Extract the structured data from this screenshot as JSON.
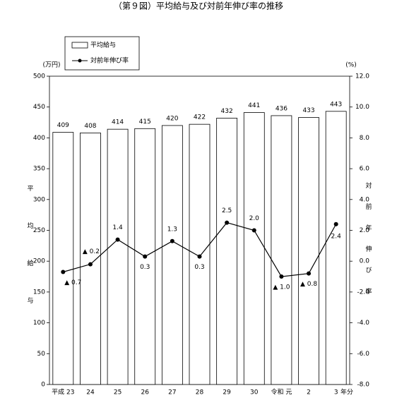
{
  "chart_data": {
    "type": "bar",
    "title": "（第９図）平均給与及び対前年伸び率の推移",
    "categories": [
      "平成 23",
      "24",
      "25",
      "26",
      "27",
      "28",
      "29",
      "30",
      "令和 元",
      "2",
      "3"
    ],
    "xlabel": "年分",
    "ylabel": "平均給与",
    "y_unit_label": "(万円)",
    "y2label": "対前年伸び率",
    "y2_unit_label": "(%)",
    "series": [
      {
        "name": "平均給与",
        "type": "bar",
        "color": "#ffffff",
        "values": [
          409,
          408,
          414,
          415,
          420,
          422,
          432,
          441,
          436,
          433,
          443
        ]
      },
      {
        "name": "対前年伸び率",
        "type": "line",
        "axis": "y2",
        "color": "#000000",
        "values": [
          -0.7,
          -0.2,
          1.4,
          0.3,
          1.3,
          0.3,
          2.5,
          2.0,
          -1.0,
          -0.8,
          2.4
        ],
        "value_labels": [
          "▲ 0.7",
          "▲ 0.2",
          "1.4",
          "0.3",
          "1.3",
          "0.3",
          "2.5",
          "2.0",
          "▲ 1.0",
          "▲ 0.8",
          "2.4"
        ]
      }
    ],
    "ylim": [
      0,
      500
    ],
    "yticks": [
      0,
      50,
      100,
      150,
      200,
      250,
      300,
      350,
      400,
      450,
      500
    ],
    "y2lim": [
      -8,
      12
    ],
    "y2ticks": [
      {
        "value": -8,
        "label": "-8.0"
      },
      {
        "value": -6,
        "label": "-6.0"
      },
      {
        "value": -4,
        "label": "-4.0"
      },
      {
        "value": -2,
        "label": "-2.0"
      },
      {
        "value": 0,
        "label": "0.0"
      },
      {
        "value": 2,
        "label": "2.0"
      },
      {
        "value": 4,
        "label": "4.0"
      },
      {
        "value": 6,
        "label": "6.0"
      },
      {
        "value": 8,
        "label": "8.0"
      },
      {
        "value": 10,
        "label": "10.0"
      },
      {
        "value": 12,
        "label": "12.0"
      }
    ]
  }
}
